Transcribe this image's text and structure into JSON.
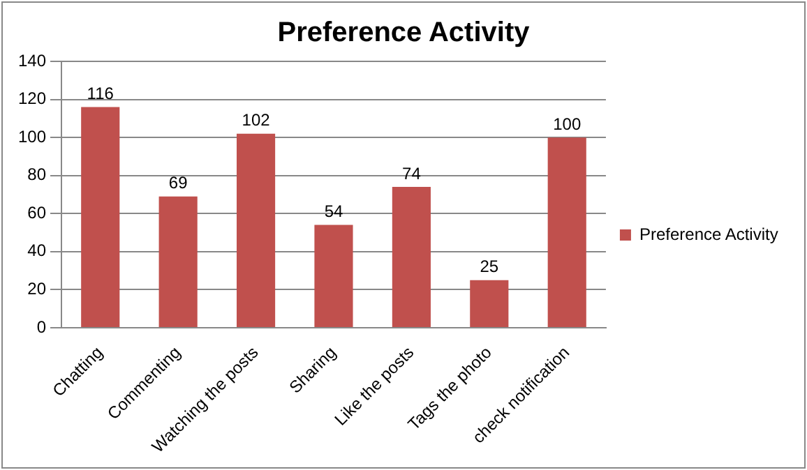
{
  "chart_data": {
    "type": "bar",
    "title": "Preference Activity",
    "categories": [
      "Chatting",
      "Commenting",
      "Watching the posts",
      "Sharing",
      "Like the posts",
      "Tags the photo",
      "check notification"
    ],
    "series": [
      {
        "name": "Preference Activity",
        "color": "#c0504d",
        "values": [
          116,
          69,
          102,
          54,
          74,
          25,
          100
        ]
      }
    ],
    "ylim": [
      0,
      140
    ],
    "yticks": [
      0,
      20,
      40,
      60,
      80,
      100,
      120,
      140
    ],
    "grid": "y",
    "legend": "right",
    "data_labels": true
  }
}
